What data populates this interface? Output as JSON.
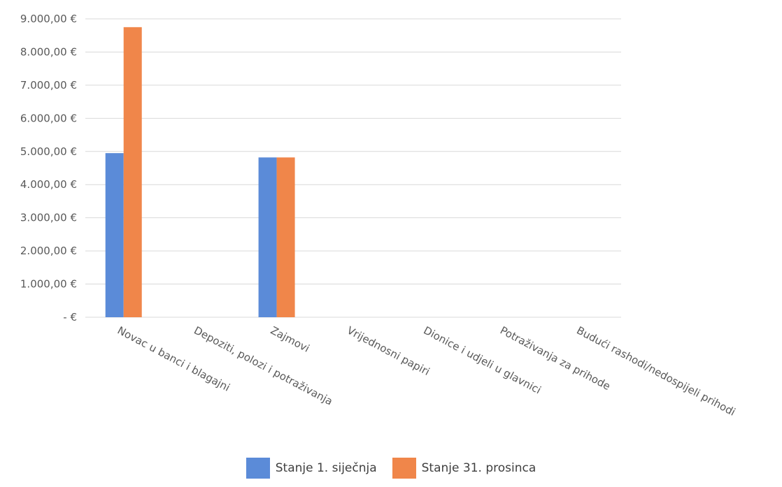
{
  "chart_data": {
    "type": "bar",
    "categories": [
      "Novac u banci i blagajni",
      "Depoziti, polozi i potraživanja",
      "Zajmovi",
      "Vrijednosni papiri",
      "Dionice i udjeli u glavnici",
      "Potraživanja za prihode",
      "Budući rashodi/nedospijeli prihodi"
    ],
    "series": [
      {
        "name": "Stanje 1. siječnja",
        "color": "#5b8bd8",
        "values": [
          4950,
          0,
          4820,
          0,
          0,
          0,
          0
        ]
      },
      {
        "name": "Stanje 31. prosinca",
        "color": "#f0864a",
        "values": [
          8750,
          0,
          4820,
          0,
          0,
          0,
          0
        ]
      }
    ],
    "y_ticks": [
      "-  €",
      "1.000,00 €",
      "2.000,00 €",
      "3.000,00 €",
      "4.000,00 €",
      "5.000,00 €",
      "6.000,00 €",
      "7.000,00 €",
      "8.000,00 €",
      "9.000,00 €"
    ],
    "ylim": [
      0,
      9000
    ],
    "grid": true,
    "legend_position": "bottom"
  }
}
